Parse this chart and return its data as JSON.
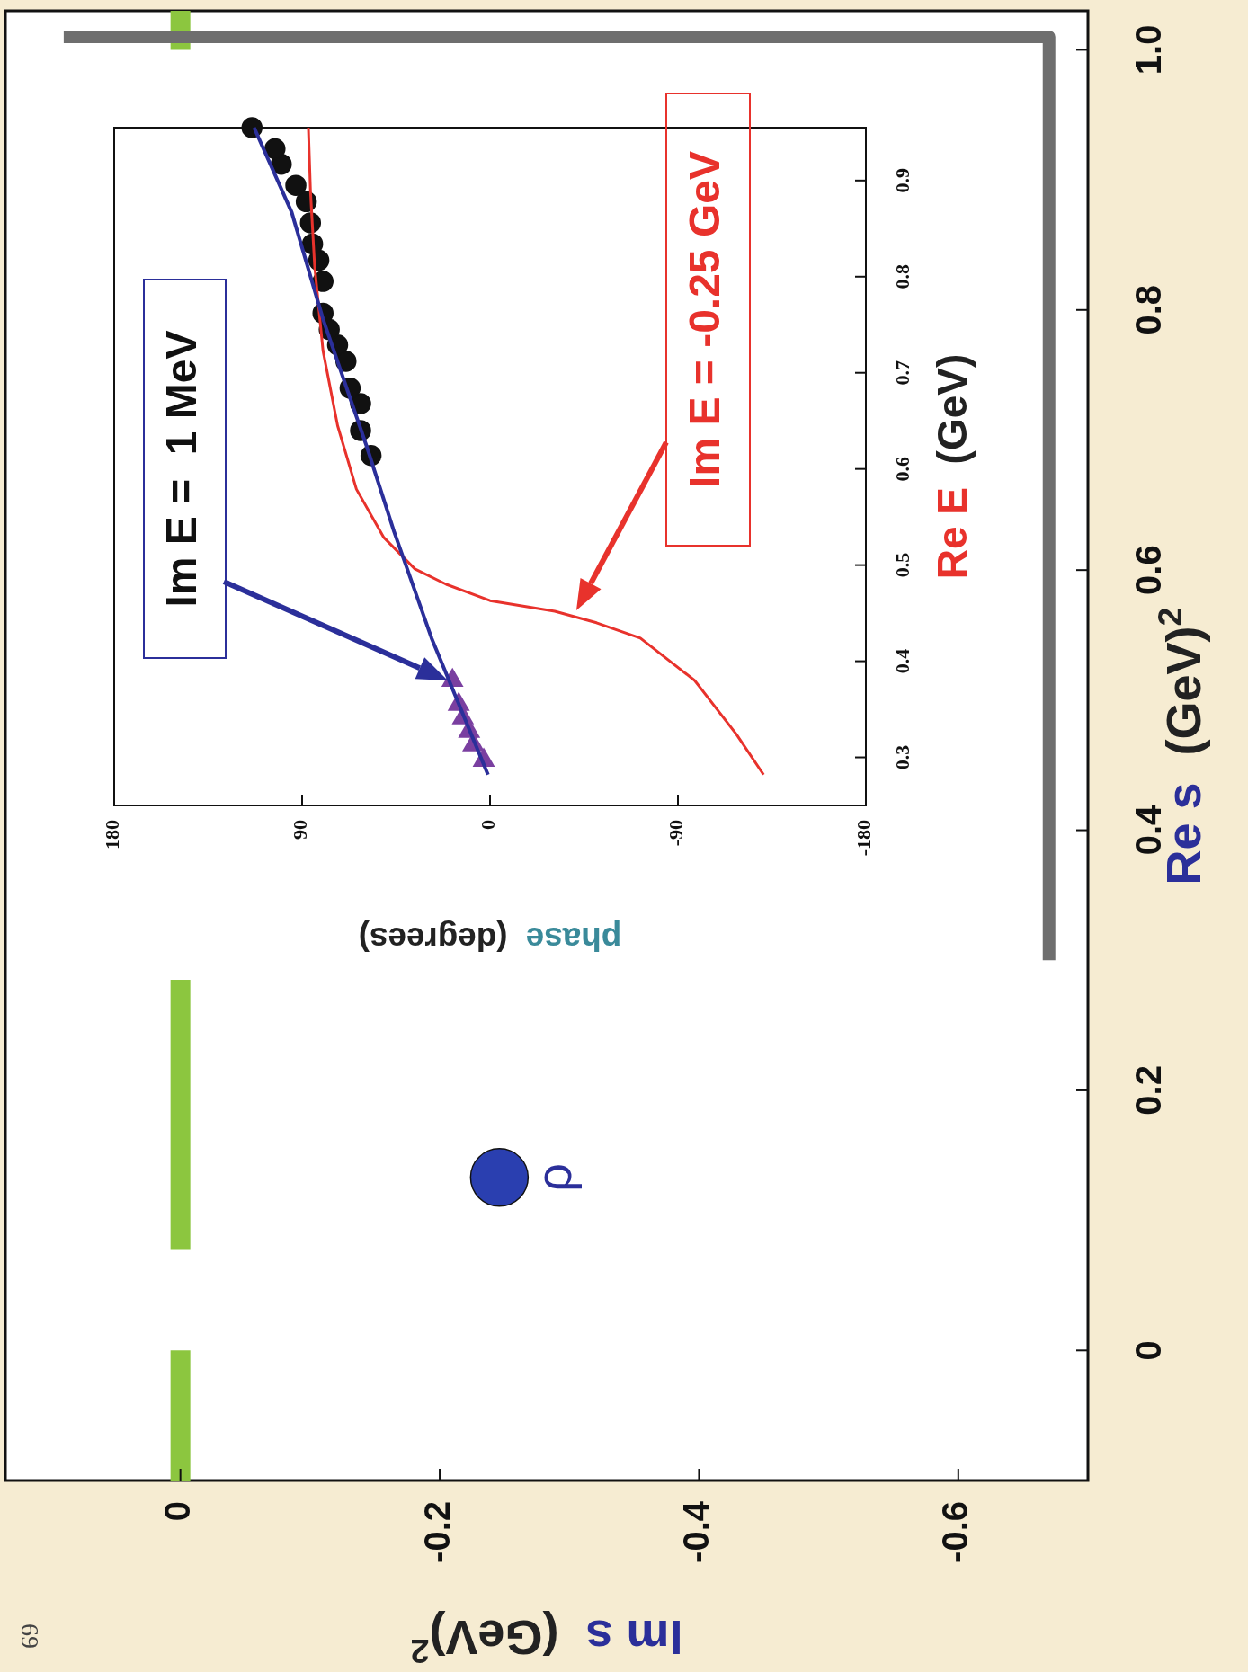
{
  "chart_data": [
    {
      "type": "scatter",
      "xlabel": "Im s  (GeV)$^{2}$",
      "ylabel": "Re s  (GeV)$^{2}$",
      "xlim": [
        0.135,
        -0.7
      ],
      "ylim": [
        -0.1,
        1.03
      ],
      "xticks": [
        0,
        -0.2,
        -0.4,
        -0.6
      ],
      "yticks": [
        0,
        0.2,
        0.4,
        0.6,
        0.8,
        {
          "value": 1,
          "label": "1.0"
        }
      ],
      "series": [
        {
          "type": "line",
          "color": "#8cc63f",
          "x": [
            0,
            0
          ],
          "values": [
            -0.1,
            0
          ]
        },
        {
          "type": "line",
          "color": "#8cc63f",
          "x": [
            0,
            0
          ],
          "values": [
            0.078,
            0.285
          ]
        },
        {
          "type": "line",
          "color": "#8cc63f",
          "x": [
            0,
            0
          ],
          "values": [
            1.0,
            1.03
          ]
        },
        {
          "type": "line",
          "color": "#6e6e6e",
          "x": [
            -0.67,
            -0.67,
            0.09
          ],
          "values": [
            0.3,
            1.01,
            1.01
          ]
        },
        {
          "color": "#2a3fb0",
          "marker": "circle",
          "x": [
            -0.246
          ],
          "values": [
            0.133
          ]
        }
      ],
      "annotations": [
        {
          "text": "ρ",
          "x": -0.246,
          "y": 0.133
        },
        "69"
      ]
    },
    {
      "type": "line",
      "xlabel": "phase  (degrees)",
      "ylabel": "Re E  (GeV)",
      "xlim": [
        180,
        -180
      ],
      "ylim": [
        0.25,
        0.955
      ],
      "xticks": [
        180,
        90,
        0,
        -90,
        -180
      ],
      "yticks": [
        0.3,
        0.4,
        0.5,
        0.6,
        0.7,
        0.8,
        0.9
      ],
      "series": [
        {
          "type": "scatter",
          "color": "#7a3fa0",
          "marker": "triangle",
          "x": [
            3,
            8,
            10,
            13,
            15,
            18
          ],
          "values": [
            0.297,
            0.313,
            0.327,
            0.341,
            0.355,
            0.38
          ]
        },
        {
          "type": "scatter",
          "color": "#111111",
          "marker": "circle",
          "x": [
            57,
            62,
            62,
            67,
            69,
            73,
            77,
            80,
            80,
            82,
            85,
            86,
            88,
            93,
            100,
            103,
            114
          ],
          "values": [
            0.614,
            0.64,
            0.668,
            0.684,
            0.712,
            0.729,
            0.745,
            0.762,
            0.795,
            0.817,
            0.834,
            0.856,
            0.878,
            0.895,
            0.917,
            0.933,
            0.955
          ]
        },
        {
          "color": "#e8322c",
          "x": [
            -131,
            -118,
            -98,
            -72,
            -51,
            -31,
            0,
            21,
            36,
            51,
            64,
            73,
            80,
            84,
            86,
            87
          ],
          "values": [
            0.282,
            0.324,
            0.38,
            0.424,
            0.44,
            0.452,
            0.463,
            0.48,
            0.496,
            0.529,
            0.579,
            0.645,
            0.723,
            0.811,
            0.889,
            0.955
          ]
        },
        {
          "color": "#2b2f9a",
          "x": [
            1,
            28,
            46,
            59,
            80,
            95,
            113
          ],
          "values": [
            0.282,
            0.424,
            0.535,
            0.623,
            0.756,
            0.867,
            0.955
          ]
        }
      ],
      "annotations": [
        "Im E =  1 MeV",
        "Im E = -0.25 GeV"
      ]
    }
  ]
}
